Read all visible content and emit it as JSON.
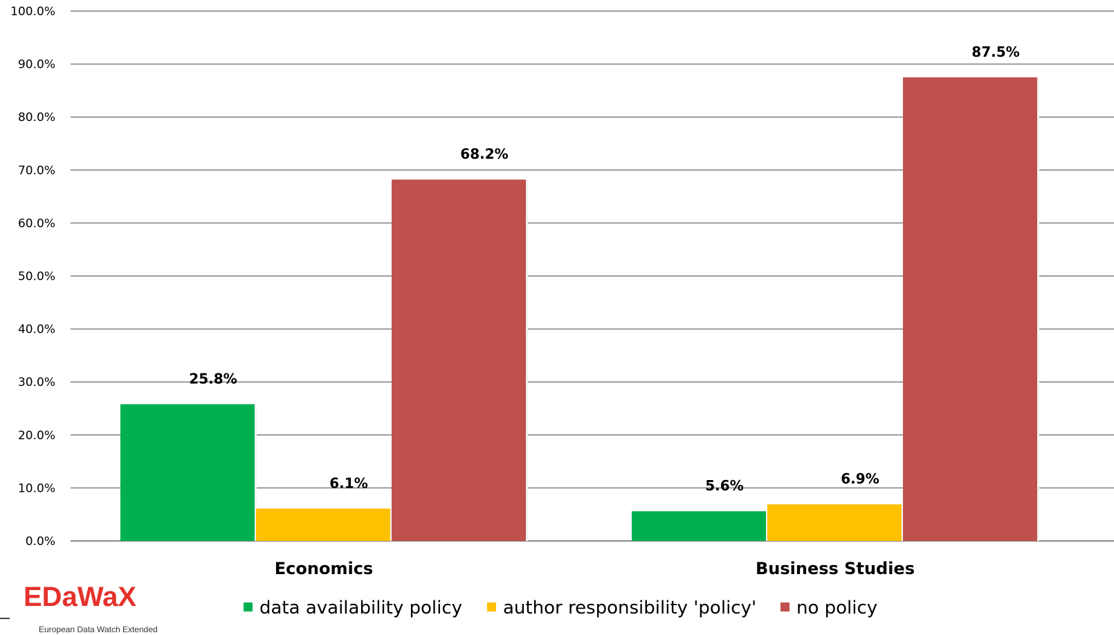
{
  "chart_data": {
    "type": "bar",
    "categories": [
      "Economics",
      "Business Studies"
    ],
    "series": [
      {
        "name": "data availability policy",
        "color": "#00b050",
        "values": [
          25.8,
          5.6
        ],
        "labels": [
          "25.8%",
          "5.6%"
        ]
      },
      {
        "name": "author responsibility 'policy'",
        "color": "#ffc000",
        "values": [
          6.1,
          6.9
        ],
        "labels": [
          "6.1%",
          "6.9%"
        ]
      },
      {
        "name": "no policy",
        "color": "#c0504d",
        "values": [
          68.2,
          87.5
        ],
        "labels": [
          "68.2%",
          "87.5%"
        ]
      }
    ],
    "yticks": [
      "0.0%",
      "10.0%",
      "20.0%",
      "30.0%",
      "40.0%",
      "50.0%",
      "60.0%",
      "70.0%",
      "80.0%",
      "90.0%",
      "100.0%"
    ],
    "ylim": [
      0,
      100
    ],
    "grid": true,
    "legend": "bottom"
  },
  "logo": {
    "name": "EDaWaX",
    "subtitle": "European Data Watch Extended",
    "color": "#e5322d"
  }
}
